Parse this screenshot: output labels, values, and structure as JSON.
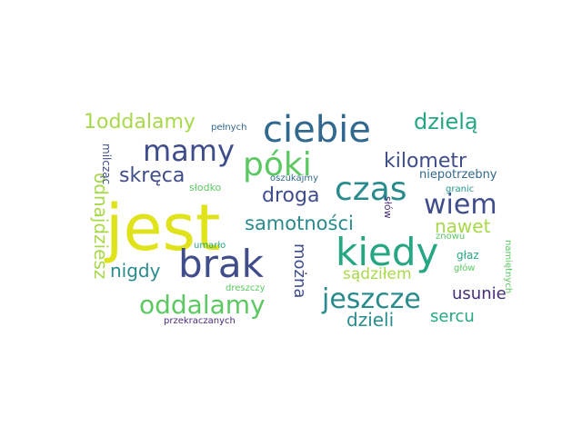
{
  "colors": {
    "yellow": "#e0e21a",
    "lime": "#a8d94a",
    "green": "#5cc862",
    "teal": "#26a784",
    "sea": "#1f9a8a",
    "cyan": "#2a8b8d",
    "blue": "#30688e",
    "indigo": "#3f4d8a",
    "purple": "#472c7a"
  },
  "words": [
    {
      "text": "jest",
      "color": "yellow"
    },
    {
      "text": "brak",
      "color": "indigo"
    },
    {
      "text": "kiedy",
      "color": "teal"
    },
    {
      "text": "ciebie",
      "color": "blue"
    },
    {
      "text": "czas",
      "color": "cyan"
    },
    {
      "text": "mamy",
      "color": "indigo"
    },
    {
      "text": "póki",
      "color": "green"
    },
    {
      "text": "wiem",
      "color": "indigo"
    },
    {
      "text": "oddalamy",
      "color": "green"
    },
    {
      "text": "jeszcze",
      "color": "cyan"
    },
    {
      "text": "dzielą",
      "color": "teal"
    },
    {
      "text": "1oddalamy",
      "color": "lime"
    },
    {
      "text": "skręca",
      "color": "indigo"
    },
    {
      "text": "kilometr",
      "color": "indigo"
    },
    {
      "text": "droga",
      "color": "indigo"
    },
    {
      "text": "samotności",
      "color": "cyan"
    },
    {
      "text": "nawet",
      "color": "lime"
    },
    {
      "text": "nigdy",
      "color": "cyan"
    },
    {
      "text": "sądziłem",
      "color": "lime"
    },
    {
      "text": "usunie",
      "color": "purple"
    },
    {
      "text": "dzieli",
      "color": "cyan"
    },
    {
      "text": "sercu",
      "color": "teal"
    },
    {
      "text": "odnajdziesz",
      "color": "lime"
    },
    {
      "text": "można",
      "color": "indigo"
    },
    {
      "text": "milcząc",
      "color": "indigo"
    },
    {
      "text": "niepotrzebny",
      "color": "blue"
    },
    {
      "text": "pełnych",
      "color": "blue"
    },
    {
      "text": "oszukajmy",
      "color": "blue"
    },
    {
      "text": "słodko",
      "color": "green"
    },
    {
      "text": "granic",
      "color": "sea"
    },
    {
      "text": "słów",
      "color": "purple"
    },
    {
      "text": "znowu",
      "color": "green"
    },
    {
      "text": "umarło",
      "color": "teal"
    },
    {
      "text": "głaz",
      "color": "teal"
    },
    {
      "text": "namiętnych",
      "color": "green"
    },
    {
      "text": "głów",
      "color": "green"
    },
    {
      "text": "dreszczy",
      "color": "green"
    },
    {
      "text": "przekraczanych",
      "color": "purple"
    }
  ]
}
